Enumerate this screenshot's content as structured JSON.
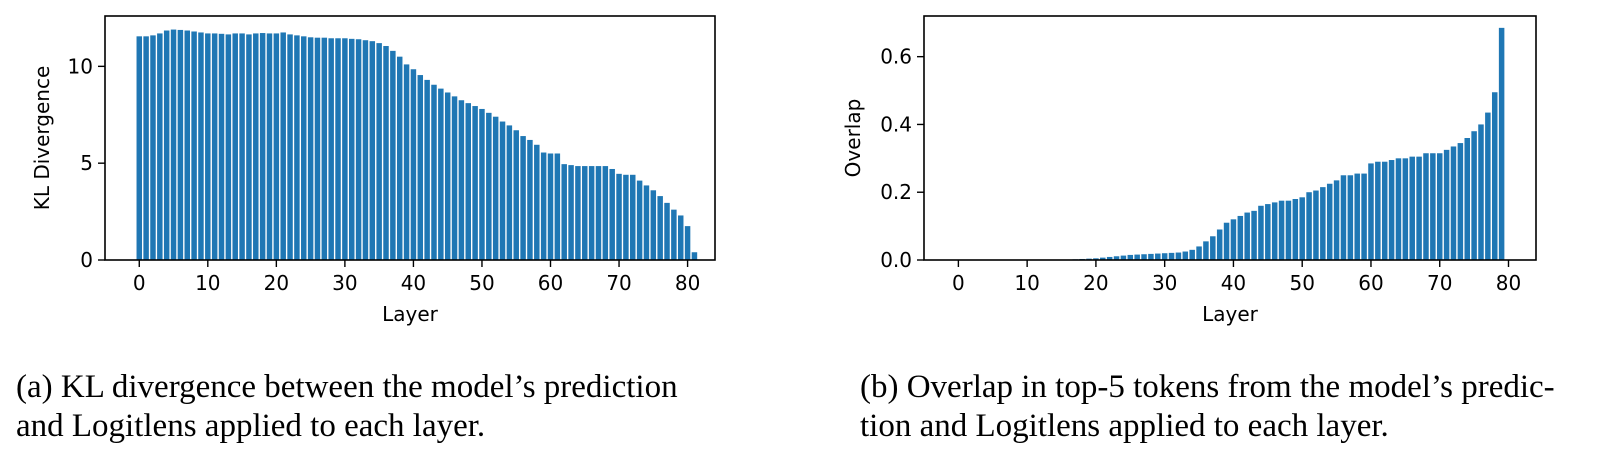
{
  "chart_data": [
    {
      "type": "bar",
      "xlabel": "Layer",
      "ylabel": "KL Divergence",
      "xlim": [
        -5,
        84
      ],
      "ylim": [
        0,
        12.6
      ],
      "xticks": [
        0,
        10,
        20,
        30,
        40,
        50,
        60,
        70,
        80
      ],
      "yticks": [
        0,
        5,
        10
      ],
      "grid": false,
      "color": "#1f77b4",
      "x_start": 0,
      "values": [
        11.55,
        11.55,
        11.6,
        11.7,
        11.85,
        11.9,
        11.88,
        11.85,
        11.8,
        11.75,
        11.7,
        11.7,
        11.68,
        11.65,
        11.7,
        11.7,
        11.65,
        11.7,
        11.72,
        11.7,
        11.7,
        11.75,
        11.65,
        11.6,
        11.55,
        11.5,
        11.48,
        11.48,
        11.45,
        11.45,
        11.45,
        11.42,
        11.4,
        11.35,
        11.3,
        11.2,
        11.05,
        10.8,
        10.5,
        10.1,
        9.85,
        9.55,
        9.3,
        9.05,
        8.85,
        8.65,
        8.45,
        8.25,
        8.1,
        7.95,
        7.8,
        7.6,
        7.4,
        7.15,
        6.95,
        6.7,
        6.4,
        6.2,
        5.95,
        5.55,
        5.5,
        5.5,
        4.95,
        4.9,
        4.85,
        4.85,
        4.85,
        4.85,
        4.85,
        4.7,
        4.45,
        4.4,
        4.4,
        4.1,
        3.85,
        3.6,
        3.3,
        2.95,
        2.6,
        2.3,
        1.75,
        0.4
      ],
      "caption": [
        "(a) KL divergence between the model’s prediction",
        "and Logitlens applied to each layer."
      ]
    },
    {
      "type": "bar",
      "xlabel": "Layer",
      "ylabel": "Overlap",
      "xlim": [
        -5,
        84
      ],
      "ylim": [
        0,
        0.72
      ],
      "xticks": [
        0,
        10,
        20,
        30,
        40,
        50,
        60,
        70,
        80
      ],
      "yticks": [
        0.0,
        0.2,
        0.4,
        0.6
      ],
      "ytick_labels": [
        "0.0",
        "0.2",
        "0.4",
        "0.6"
      ],
      "grid": false,
      "color": "#1f77b4",
      "x_start": 0,
      "values": [
        0,
        0,
        0,
        0,
        0,
        0,
        0,
        0,
        0,
        0,
        0,
        0,
        0,
        0,
        0,
        0,
        0.001,
        0.002,
        0.003,
        0.004,
        0.005,
        0.007,
        0.009,
        0.011,
        0.013,
        0.015,
        0.016,
        0.017,
        0.018,
        0.019,
        0.02,
        0.021,
        0.022,
        0.025,
        0.03,
        0.04,
        0.055,
        0.07,
        0.09,
        0.11,
        0.12,
        0.13,
        0.14,
        0.145,
        0.16,
        0.165,
        0.17,
        0.175,
        0.175,
        0.18,
        0.185,
        0.2,
        0.205,
        0.215,
        0.225,
        0.235,
        0.25,
        0.25,
        0.255,
        0.255,
        0.285,
        0.29,
        0.29,
        0.295,
        0.3,
        0.3,
        0.305,
        0.305,
        0.315,
        0.315,
        0.315,
        0.325,
        0.335,
        0.345,
        0.36,
        0.38,
        0.4,
        0.435,
        0.495,
        0.685
      ],
      "caption": [
        "(b) Overlap in top-5 tokens from the model’s predic-",
        "tion and Logitlens applied to each layer."
      ]
    }
  ]
}
